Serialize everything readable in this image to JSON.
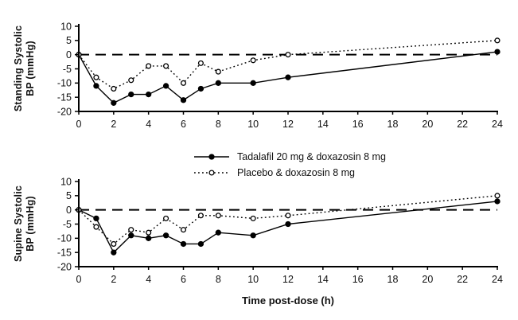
{
  "figure": {
    "background": "#ffffff",
    "line_color": "#000000",
    "xlabel": "Time post-dose (h)"
  },
  "chart_data": [
    {
      "type": "line",
      "panel": "top",
      "ylabel": "Standing Systolic BP (mmHg)",
      "ylabel_lines": [
        "Standing Systolic",
        "BP (mmHg)"
      ],
      "x": [
        0,
        1,
        2,
        3,
        4,
        5,
        6,
        7,
        8,
        10,
        12,
        24
      ],
      "xlim": [
        0,
        24
      ],
      "xticks": [
        0,
        2,
        4,
        6,
        8,
        10,
        12,
        14,
        16,
        18,
        20,
        22,
        24
      ],
      "ylim": [
        -20,
        10
      ],
      "yticks": [
        10,
        5,
        0,
        -5,
        -10,
        -15,
        -20
      ],
      "zero_reference_line": "dashed",
      "grid": false,
      "series": [
        {
          "name": "Tadalafil 20 mg & doxazosin 8 mg",
          "line": "solid",
          "marker": "filled-circle",
          "values": [
            0,
            -11,
            -17,
            -14,
            -14,
            -11,
            -16,
            -12,
            -10,
            -10,
            -8,
            1
          ]
        },
        {
          "name": "Placebo & doxazosin 8 mg",
          "line": "dotted",
          "marker": "open-circle",
          "values": [
            0,
            -8,
            -12,
            -9,
            -4,
            -4,
            -10,
            -3,
            -6,
            -2,
            0,
            5
          ]
        }
      ]
    },
    {
      "type": "line",
      "panel": "bottom",
      "ylabel": "Supine Systolic BP (mmHg)",
      "ylabel_lines": [
        "Supine Systolic",
        "BP (mmHg)"
      ],
      "xlabel": "Time post-dose (h)",
      "x": [
        0,
        1,
        2,
        3,
        4,
        5,
        6,
        7,
        8,
        10,
        12,
        24
      ],
      "xlim": [
        0,
        24
      ],
      "xticks": [
        0,
        2,
        4,
        6,
        8,
        10,
        12,
        14,
        16,
        18,
        20,
        22,
        24
      ],
      "ylim": [
        -20,
        10
      ],
      "yticks": [
        10,
        5,
        0,
        -5,
        -10,
        -15,
        -20
      ],
      "zero_reference_line": "dashed",
      "grid": false,
      "series": [
        {
          "name": "Tadalafil 20 mg & doxazosin 8 mg",
          "line": "solid",
          "marker": "filled-circle",
          "values": [
            0,
            -3,
            -15,
            -9,
            -10,
            -9,
            -12,
            -12,
            -8,
            -9,
            -5,
            3
          ]
        },
        {
          "name": "Placebo & doxazosin 8 mg",
          "line": "dotted",
          "marker": "open-circle",
          "values": [
            0,
            -6,
            -12,
            -7,
            -8,
            -3,
            -7,
            -2,
            -2,
            -3,
            -2,
            5
          ]
        }
      ]
    }
  ],
  "legend": {
    "position": "between-panels",
    "items": [
      {
        "label": "Tadalafil 20 mg & doxazosin 8 mg",
        "swatch": "solid-line-filled-circle"
      },
      {
        "label": "Placebo & doxazosin 8 mg",
        "swatch": "dotted-line-open-circle"
      }
    ]
  }
}
